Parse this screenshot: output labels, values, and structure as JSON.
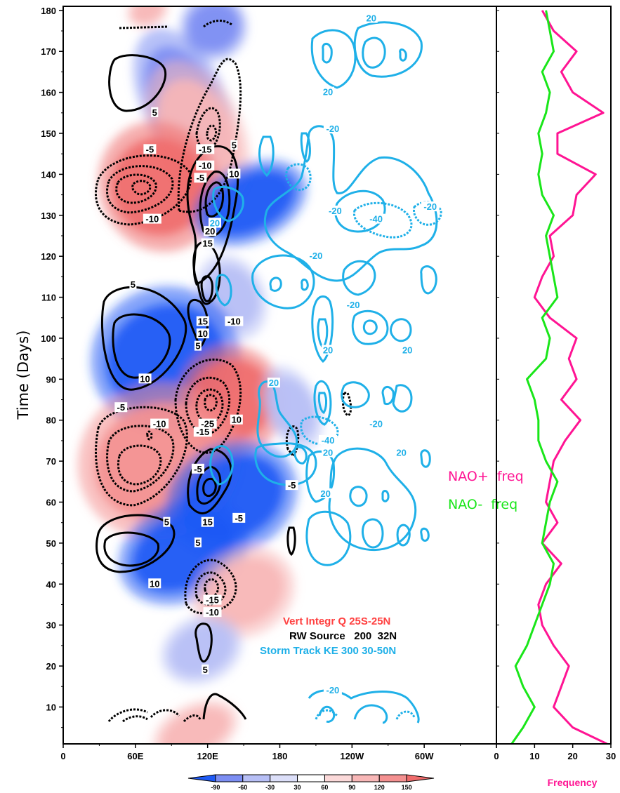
{
  "chart_data": [
    {
      "type": "heatmap",
      "ylabel": "Time (Days)",
      "xticks": [
        "0",
        "60E",
        "120E",
        "180",
        "120W",
        "60W",
        "0"
      ],
      "yticks": [
        "10",
        "20",
        "30",
        "40",
        "50",
        "60",
        "70",
        "80",
        "90",
        "100",
        "110",
        "120",
        "130",
        "140",
        "150",
        "160",
        "170",
        "180"
      ],
      "ylim": [
        1,
        181
      ],
      "xlim_deg": [
        0,
        360
      ],
      "legend": [
        {
          "label": "Vert Integr Q 25S-25N",
          "color": "#ff4040"
        },
        {
          "label": "RW Source   200  32N",
          "color": "#000000"
        },
        {
          "label": "Storm Track KE 300 30-50N",
          "color": "#1fb0e8"
        }
      ],
      "colorbar": {
        "levels": [
          "-90",
          "-60",
          "-30",
          "30",
          "60",
          "90",
          "120",
          "150"
        ],
        "colors": [
          "#1e5af5",
          "#7c8ef3",
          "#b7bff6",
          "#dcdff9",
          "#ffffff",
          "#fbd9d9",
          "#f8b7b7",
          "#f49090",
          "#ef6b6b"
        ]
      },
      "fill_blobs": [
        {
          "lon": 125,
          "day": 176,
          "rx": 22,
          "ry": 6,
          "value": -60
        },
        {
          "lon": 70,
          "day": 180,
          "rx": 14,
          "ry": 3,
          "value": 60
        },
        {
          "lon": 100,
          "day": 158,
          "rx": 28,
          "ry": 14,
          "value": -60
        },
        {
          "lon": 112,
          "day": 150,
          "rx": 30,
          "ry": 14,
          "value": 60
        },
        {
          "lon": 80,
          "day": 137,
          "rx": 40,
          "ry": 12,
          "value": 120
        },
        {
          "lon": 155,
          "day": 133,
          "rx": 40,
          "ry": 7,
          "value": -90
        },
        {
          "lon": 140,
          "day": 110,
          "rx": 22,
          "ry": 8,
          "value": -30
        },
        {
          "lon": 85,
          "day": 95,
          "rx": 50,
          "ry": 13,
          "value": -90
        },
        {
          "lon": 140,
          "day": 85,
          "rx": 35,
          "ry": 10,
          "value": 120
        },
        {
          "lon": 80,
          "day": 70,
          "rx": 55,
          "ry": 14,
          "value": 90
        },
        {
          "lon": 140,
          "day": 61,
          "rx": 45,
          "ry": 10,
          "value": -90
        },
        {
          "lon": 100,
          "day": 48,
          "rx": 45,
          "ry": 9,
          "value": -90
        },
        {
          "lon": 150,
          "day": 38,
          "rx": 35,
          "ry": 8,
          "value": 60
        },
        {
          "lon": 115,
          "day": 24,
          "rx": 28,
          "ry": 6,
          "value": -30
        },
        {
          "lon": 110,
          "day": 4,
          "rx": 30,
          "ry": 5,
          "value": 60
        },
        {
          "lon": 190,
          "day": 83,
          "rx": 18,
          "ry": 8,
          "value": -30
        }
      ],
      "labels_black": [
        {
          "text": "5",
          "lon": 76,
          "day": 155
        },
        {
          "text": "-5",
          "lon": 72,
          "day": 146
        },
        {
          "text": "-15",
          "lon": 118,
          "day": 146
        },
        {
          "text": "5",
          "lon": 142,
          "day": 147
        },
        {
          "text": "-10",
          "lon": 118,
          "day": 142
        },
        {
          "text": "10",
          "lon": 142,
          "day": 140
        },
        {
          "text": "-5",
          "lon": 114,
          "day": 139
        },
        {
          "text": "-10",
          "lon": 74,
          "day": 129
        },
        {
          "text": "20",
          "lon": 122,
          "day": 126
        },
        {
          "text": "15",
          "lon": 120,
          "day": 123
        },
        {
          "text": "5",
          "lon": 58,
          "day": 113
        },
        {
          "text": "15",
          "lon": 116,
          "day": 104
        },
        {
          "text": "-10",
          "lon": 142,
          "day": 104
        },
        {
          "text": "10",
          "lon": 116,
          "day": 101
        },
        {
          "text": "5",
          "lon": 112,
          "day": 98
        },
        {
          "text": "10",
          "lon": 68,
          "day": 90
        },
        {
          "text": "-5",
          "lon": 48,
          "day": 83
        },
        {
          "text": "-10",
          "lon": 80,
          "day": 79
        },
        {
          "text": "-25",
          "lon": 120,
          "day": 79
        },
        {
          "text": "-15",
          "lon": 116,
          "day": 77
        },
        {
          "text": "10",
          "lon": 144,
          "day": 80
        },
        {
          "text": "-5",
          "lon": 112,
          "day": 68
        },
        {
          "text": "5",
          "lon": 86,
          "day": 55
        },
        {
          "text": "15",
          "lon": 120,
          "day": 55
        },
        {
          "text": "-5",
          "lon": 146,
          "day": 56
        },
        {
          "text": "5",
          "lon": 112,
          "day": 50
        },
        {
          "text": "10",
          "lon": 76,
          "day": 40
        },
        {
          "text": "-15",
          "lon": 124,
          "day": 36
        },
        {
          "text": "-10",
          "lon": 124,
          "day": 33
        },
        {
          "text": "5",
          "lon": 118,
          "day": 19
        },
        {
          "text": "-5",
          "lon": 190,
          "day": 64
        }
      ],
      "labels_blue": [
        {
          "text": "20",
          "lon": 256,
          "day": 178
        },
        {
          "text": "20",
          "lon": 220,
          "day": 160
        },
        {
          "text": "-20",
          "lon": 224,
          "day": 151
        },
        {
          "text": "-20",
          "lon": 226,
          "day": 131
        },
        {
          "text": "-20",
          "lon": 305,
          "day": 132
        },
        {
          "text": "-40",
          "lon": 260,
          "day": 129
        },
        {
          "text": "20",
          "lon": 126,
          "day": 128
        },
        {
          "text": "-20",
          "lon": 210,
          "day": 120
        },
        {
          "text": "-20",
          "lon": 241,
          "day": 108
        },
        {
          "text": "20",
          "lon": 220,
          "day": 97
        },
        {
          "text": "20",
          "lon": 286,
          "day": 97
        },
        {
          "text": "20",
          "lon": 175,
          "day": 89
        },
        {
          "text": "-20",
          "lon": 260,
          "day": 79
        },
        {
          "text": "-40",
          "lon": 220,
          "day": 75
        },
        {
          "text": "20",
          "lon": 220,
          "day": 72
        },
        {
          "text": "20",
          "lon": 281,
          "day": 72
        },
        {
          "text": "20",
          "lon": 218,
          "day": 62
        },
        {
          "text": "-20",
          "lon": 224,
          "day": 14
        }
      ]
    },
    {
      "type": "line",
      "xlabel": "Frequency",
      "xticks": [
        "0",
        "10",
        "20",
        "30"
      ],
      "xlim": [
        0,
        30
      ],
      "ylim": [
        1,
        181
      ],
      "series": [
        {
          "name": "NAO+  freq",
          "color": "#ff1493",
          "y": [
            1,
            5,
            10,
            15,
            20,
            25,
            30,
            35,
            40,
            45,
            50,
            55,
            60,
            65,
            70,
            75,
            80,
            85,
            90,
            95,
            100,
            105,
            110,
            115,
            120,
            125,
            130,
            135,
            140,
            145,
            150,
            155,
            160,
            165,
            170,
            175,
            180
          ],
          "x": [
            29,
            20,
            15,
            17,
            19,
            15,
            12,
            11,
            13,
            17,
            12,
            16,
            13,
            14,
            15,
            18,
            22,
            17,
            21,
            19,
            21,
            14,
            10,
            12,
            15,
            14,
            20,
            21,
            26,
            16,
            16,
            28,
            20,
            17,
            21,
            15,
            12
          ]
        },
        {
          "name": "NAO-  freq",
          "color": "#19e619",
          "y": [
            1,
            5,
            10,
            15,
            20,
            25,
            30,
            35,
            40,
            45,
            50,
            55,
            60,
            65,
            70,
            75,
            80,
            85,
            90,
            95,
            100,
            105,
            110,
            115,
            120,
            125,
            130,
            135,
            140,
            145,
            150,
            155,
            160,
            165,
            170,
            175,
            180
          ],
          "x": [
            4,
            7,
            10,
            7,
            5,
            8,
            10,
            12,
            14,
            15,
            12,
            13,
            14,
            16,
            13,
            11,
            11,
            10,
            8,
            13,
            14,
            12,
            16,
            15,
            14,
            13,
            15,
            12,
            11,
            12,
            11,
            13,
            14,
            12,
            15,
            14,
            13
          ]
        }
      ]
    }
  ]
}
